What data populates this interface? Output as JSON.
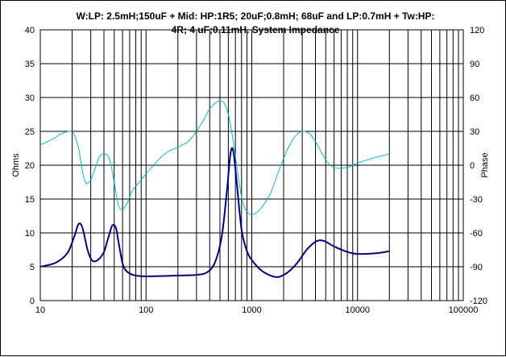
{
  "chart_data": {
    "type": "line",
    "title_lines": [
      "W:LP: 2.5mH;150uF + Mid: HP:1R5; 20uF;0.8mH; 68uF and LP:0.7mH + Tw:HP:",
      "4R; 4 uF;0.11mH. System Impedance"
    ],
    "ylabel_left": "Ohms",
    "ylabel_right": "Phase",
    "x_scale": "log",
    "xlim": [
      10,
      100000
    ],
    "ylim_left": [
      0,
      40
    ],
    "ylim_right": [
      -120,
      120
    ],
    "x_ticks": [
      "10",
      "100",
      "1000",
      "10000",
      "100000"
    ],
    "y_left_ticks": [
      "0",
      "5",
      "10",
      "15",
      "20",
      "25",
      "30",
      "35",
      "40"
    ],
    "y_right_ticks": [
      "-120",
      "-90",
      "-60",
      "-30",
      "0",
      "30",
      "60",
      "90",
      "120"
    ],
    "grid": true,
    "series": [
      {
        "axis": "left",
        "color": "#000080",
        "x": [
          10,
          14,
          18,
          21,
          23,
          25,
          28,
          31,
          35,
          40,
          44,
          48,
          52,
          55,
          60,
          65,
          75,
          90,
          120,
          200,
          300,
          380,
          450,
          520,
          580,
          630,
          670,
          720,
          800,
          900,
          1000,
          1200,
          1500,
          1800,
          2200,
          2700,
          3300,
          4000,
          4500,
          5000,
          6000,
          8000,
          10000,
          15000,
          20000
        ],
        "values": [
          5.0,
          5.6,
          7.0,
          9.5,
          11.3,
          10.8,
          7.5,
          5.9,
          6.0,
          7.2,
          9.3,
          11.1,
          10.7,
          8.6,
          5.5,
          4.4,
          3.8,
          3.6,
          3.6,
          3.7,
          3.8,
          4.2,
          5.7,
          9.5,
          16.0,
          21.8,
          22.0,
          17.5,
          10.5,
          7.3,
          6.0,
          4.6,
          3.7,
          3.5,
          4.2,
          5.6,
          7.5,
          8.7,
          8.9,
          8.7,
          8.0,
          7.2,
          6.9,
          7.0,
          7.3
        ]
      },
      {
        "axis": "right",
        "color": "#00C0C0",
        "x": [
          10,
          13,
          16,
          19,
          21,
          23,
          25,
          27,
          30,
          33,
          36,
          40,
          45,
          50,
          55,
          60,
          66,
          75,
          90,
          110,
          150,
          200,
          250,
          300,
          350,
          400,
          450,
          500,
          550,
          600,
          650,
          700,
          750,
          800,
          850,
          900,
          1000,
          1200,
          1500,
          1800,
          2200,
          2600,
          3000,
          3500,
          4000,
          5000,
          6000,
          8000,
          10000,
          15000,
          20000
        ],
        "values": [
          18,
          23,
          28,
          30,
          27,
          15,
          -5,
          -16,
          -13,
          -3,
          7,
          10,
          6,
          -15,
          -36,
          -39,
          -34,
          -22,
          -13,
          -3,
          10,
          16,
          21,
          30,
          40,
          50,
          55,
          57,
          55,
          45,
          28,
          8,
          -12,
          -28,
          -37,
          -41,
          -44,
          -39,
          -25,
          -5,
          15,
          26,
          30,
          28,
          21,
          5,
          -2,
          -2,
          2,
          7,
          10
        ]
      }
    ]
  }
}
